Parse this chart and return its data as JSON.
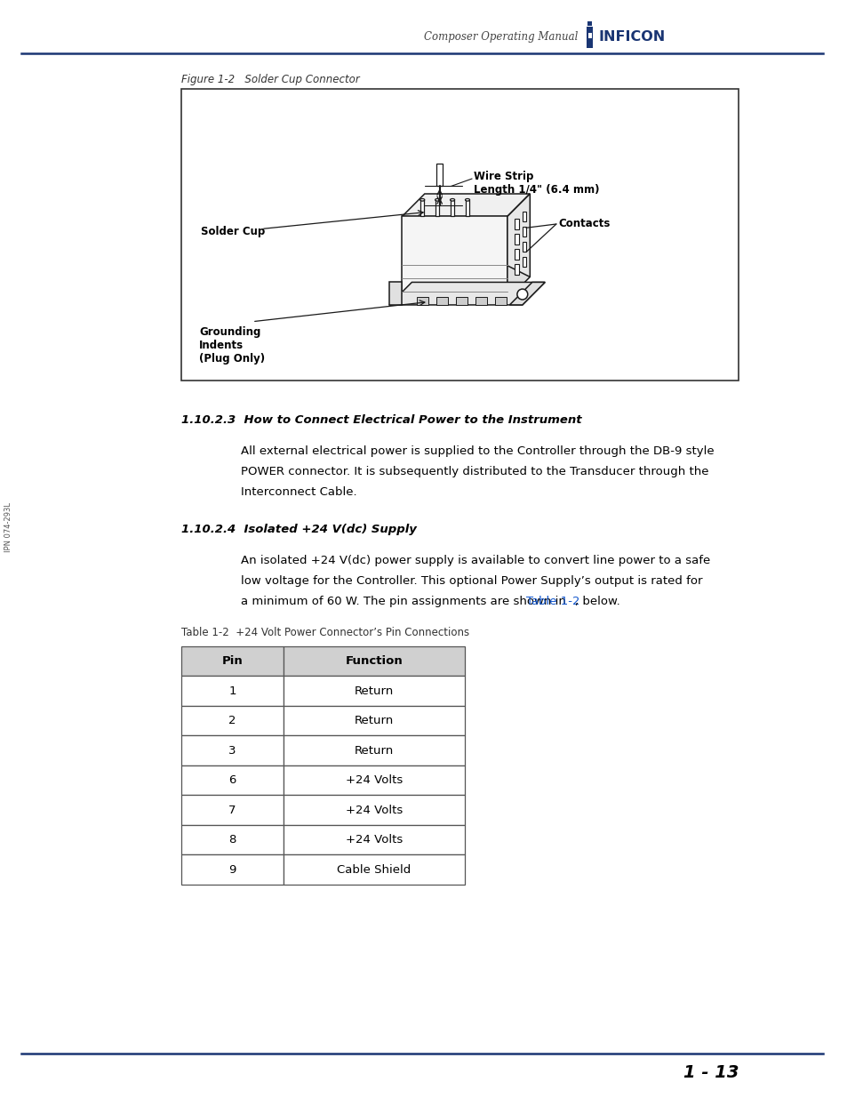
{
  "page_width": 9.54,
  "page_height": 12.35,
  "bg_color": "#ffffff",
  "header_text": "Composer Operating Manual",
  "header_font_size": 8.5,
  "header_color": "#444444",
  "top_line_color": "#1a3573",
  "bottom_line_color": "#1a3573",
  "page_number": "1 - 13",
  "figure_caption": "Figure 1-2   Solder Cup Connector",
  "section_1_title": "1.10.2.3  How to Connect Electrical Power to the Instrument",
  "section_1_body_line1": "All external electrical power is supplied to the Controller through the DB-9 style",
  "section_1_body_line2": "POWER connector. It is subsequently distributed to the Transducer through the",
  "section_1_body_line3": "Interconnect Cable.",
  "section_2_title": "1.10.2.4  Isolated +24 V(dc) Supply",
  "section_2_body_line1": "An isolated +24 V(dc) power supply is available to convert line power to a safe",
  "section_2_body_line2": "low voltage for the Controller. This optional Power Supply’s output is rated for",
  "section_2_body_line3_pre": "a minimum of 60 W. The pin assignments are shown in ",
  "section_2_body_line3_link": "Table 1-2",
  "section_2_body_line3_post": ", below.",
  "table_caption": "Table 1-2  +24 Volt Power Connector’s Pin Connections",
  "table_headers": [
    "Pin",
    "Function"
  ],
  "table_data": [
    [
      "1",
      "Return"
    ],
    [
      "2",
      "Return"
    ],
    [
      "3",
      "Return"
    ],
    [
      "6",
      "+24 Volts"
    ],
    [
      "7",
      "+24 Volts"
    ],
    [
      "8",
      "+24 Volts"
    ],
    [
      "9",
      "Cable Shield"
    ]
  ],
  "side_label": "IPN 074-293L",
  "inficon_color": "#1a3573",
  "link_color": "#1155cc",
  "diagram_label_wire_strip": "Wire Strip\nLength 1/4\" (6.4 mm)",
  "diagram_label_solder_cup": "Solder Cup",
  "diagram_label_contacts": "Contacts",
  "diagram_label_grounding": "Grounding\nIndents\n(Plug Only)"
}
